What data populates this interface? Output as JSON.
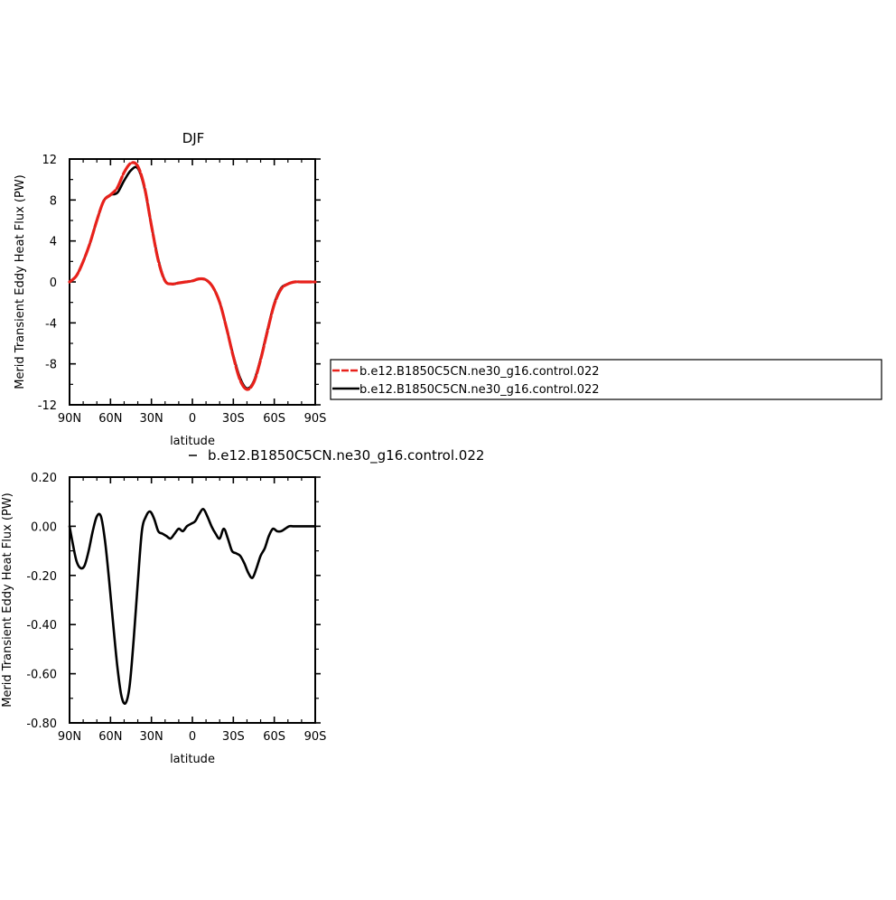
{
  "chart_data": [
    {
      "type": "line",
      "title": "DJF",
      "xlabel": "latitude",
      "ylabel": "Merid Transient Eddy Heat Flux (PW)",
      "xlim": [
        90,
        -90
      ],
      "ylim": [
        -12,
        12
      ],
      "x_ticks": [
        {
          "value": 90,
          "label": "90N"
        },
        {
          "value": 60,
          "label": "60N"
        },
        {
          "value": 30,
          "label": "30N"
        },
        {
          "value": 0,
          "label": "0"
        },
        {
          "value": -30,
          "label": "30S"
        },
        {
          "value": -60,
          "label": "60S"
        },
        {
          "value": -90,
          "label": "90S"
        }
      ],
      "y_ticks": [
        {
          "value": 12,
          "label": "12"
        },
        {
          "value": 8,
          "label": "8"
        },
        {
          "value": 4,
          "label": "4"
        },
        {
          "value": 0,
          "label": "0"
        },
        {
          "value": -4,
          "label": "-4"
        },
        {
          "value": -8,
          "label": "-8"
        },
        {
          "value": -12,
          "label": "-12"
        }
      ],
      "series": [
        {
          "name": "b.e12.B1850C5CN.ne30_g16.control.022",
          "color": "#e8211b",
          "dashed": true,
          "x": [
            90,
            85,
            80,
            75,
            70,
            65,
            60,
            55,
            50,
            45,
            40,
            35,
            30,
            25,
            20,
            15,
            10,
            5,
            0,
            -5,
            -10,
            -15,
            -20,
            -25,
            -30,
            -35,
            -40,
            -45,
            -50,
            -55,
            -60,
            -65,
            -70,
            -75,
            -80,
            -85,
            -90
          ],
          "y": [
            0,
            0.6,
            2.0,
            3.8,
            6.0,
            7.9,
            8.5,
            9.2,
            10.7,
            11.6,
            11.3,
            9.2,
            5.5,
            2.1,
            0.1,
            -0.2,
            -0.1,
            0.0,
            0.1,
            0.3,
            0.2,
            -0.5,
            -2.0,
            -4.5,
            -7.3,
            -9.6,
            -10.5,
            -9.8,
            -7.6,
            -4.8,
            -2.2,
            -0.7,
            -0.2,
            0,
            0,
            0,
            0
          ]
        },
        {
          "name": "b.e12.B1850C5CN.ne30_g16.control.022",
          "color": "#000000",
          "dashed": false,
          "x": [
            90,
            85,
            80,
            75,
            70,
            65,
            60,
            55,
            50,
            45,
            40,
            35,
            30,
            25,
            20,
            15,
            10,
            5,
            0,
            -5,
            -10,
            -15,
            -20,
            -25,
            -30,
            -35,
            -40,
            -45,
            -50,
            -55,
            -60,
            -65,
            -70,
            -75,
            -80,
            -85,
            -90
          ],
          "y": [
            0,
            0.6,
            2.0,
            3.8,
            6.0,
            7.9,
            8.5,
            8.7,
            9.9,
            10.9,
            11.1,
            9.1,
            5.5,
            2.2,
            0.1,
            -0.2,
            -0.1,
            0.0,
            0.1,
            0.3,
            0.2,
            -0.5,
            -2.0,
            -4.5,
            -7.2,
            -9.4,
            -10.4,
            -9.7,
            -7.5,
            -4.7,
            -2.1,
            -0.6,
            -0.2,
            0,
            0,
            0,
            0
          ]
        }
      ],
      "legend": {
        "placement": "right"
      }
    },
    {
      "type": "line",
      "title": "",
      "legend_text": "b.e12.B1850C5CN.ne30_g16.control.022",
      "xlabel": "latitude",
      "ylabel": "Merid Transient Eddy Heat Flux (PW)",
      "xlim": [
        90,
        -90
      ],
      "ylim": [
        -0.8,
        0.2
      ],
      "x_ticks": [
        {
          "value": 90,
          "label": "90N"
        },
        {
          "value": 60,
          "label": "60N"
        },
        {
          "value": 30,
          "label": "30N"
        },
        {
          "value": 0,
          "label": "0"
        },
        {
          "value": -30,
          "label": "30S"
        },
        {
          "value": -60,
          "label": "60S"
        },
        {
          "value": -90,
          "label": "90S"
        }
      ],
      "y_ticks": [
        {
          "value": 0.2,
          "label": "0.20"
        },
        {
          "value": 0.0,
          "label": "0.00"
        },
        {
          "value": -0.2,
          "label": "-0.20"
        },
        {
          "value": -0.4,
          "label": "-0.40"
        },
        {
          "value": -0.6,
          "label": "-0.60"
        },
        {
          "value": -0.8,
          "label": "-0.80"
        }
      ],
      "series": [
        {
          "name": "b.e12.B1850C5CN.ne30_g16.control.022",
          "color": "#000000",
          "dashed": false,
          "x": [
            90,
            88,
            85,
            82,
            79,
            76,
            73,
            70,
            67,
            64,
            61,
            58,
            55,
            52,
            49,
            46,
            43,
            40,
            37,
            34,
            31,
            28,
            25,
            22,
            19,
            16,
            13,
            10,
            7,
            4,
            1,
            -2,
            -5,
            -8,
            -11,
            -14,
            -17,
            -20,
            -23,
            -26,
            -29,
            -32,
            -35,
            -38,
            -41,
            -44,
            -47,
            -50,
            -53,
            -56,
            -59,
            -62,
            -65,
            -68,
            -71,
            -74,
            -77,
            -80,
            -83,
            -86,
            -90
          ],
          "y": [
            0.0,
            -0.06,
            -0.14,
            -0.17,
            -0.16,
            -0.1,
            -0.02,
            0.04,
            0.04,
            -0.06,
            -0.22,
            -0.4,
            -0.57,
            -0.69,
            -0.72,
            -0.65,
            -0.46,
            -0.23,
            -0.02,
            0.04,
            0.06,
            0.03,
            -0.02,
            -0.03,
            -0.04,
            -0.05,
            -0.03,
            -0.01,
            -0.02,
            0.0,
            0.01,
            0.02,
            0.05,
            0.07,
            0.04,
            0.0,
            -0.03,
            -0.05,
            -0.01,
            -0.05,
            -0.1,
            -0.11,
            -0.12,
            -0.15,
            -0.19,
            -0.21,
            -0.17,
            -0.12,
            -0.09,
            -0.04,
            -0.01,
            -0.02,
            -0.02,
            -0.01,
            0.0,
            0.0,
            0.0,
            0.0,
            0.0,
            0.0,
            0.0
          ]
        }
      ]
    }
  ]
}
